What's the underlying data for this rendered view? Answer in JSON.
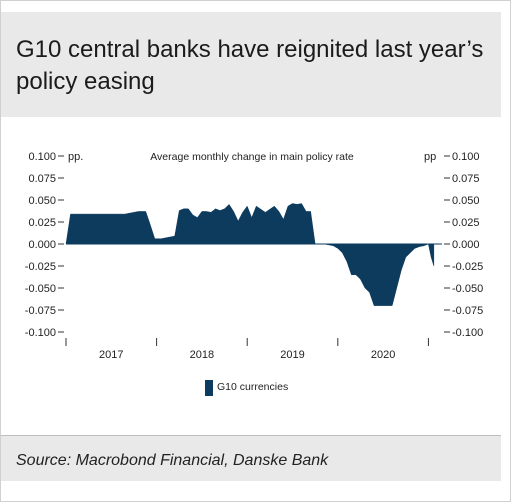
{
  "title": "G10 central banks have reignited last year’s policy easing",
  "source": "Source: Macrobond Financial, Danske Bank",
  "chart_data": {
    "type": "area",
    "title": "Average monthly change in main policy rate",
    "left_unit": "pp.",
    "right_unit": "pp",
    "ylim": [
      -0.1,
      0.1
    ],
    "yticks": [
      -0.1,
      -0.075,
      -0.05,
      -0.025,
      0.0,
      0.025,
      0.05,
      0.075,
      0.1
    ],
    "ytick_labels": [
      "-0.100",
      "-0.075",
      "-0.050",
      "-0.025",
      "0.000",
      "0.025",
      "0.050",
      "0.075",
      "0.100"
    ],
    "x_range": [
      2016.0,
      2020.15
    ],
    "x_year_labels": [
      {
        "label": "2017",
        "x": 2016.5
      },
      {
        "label": "2018",
        "x": 2017.5
      },
      {
        "label": "2019",
        "x": 2018.5
      },
      {
        "label": "2020",
        "x": 2019.5
      }
    ],
    "x_year_boundaries": [
      2016.0,
      2017.0,
      2018.0,
      2019.0,
      2020.0
    ],
    "legend": {
      "placement": "bottom-left",
      "entries": [
        "G10 currencies"
      ]
    },
    "series": [
      {
        "name": "G10 currencies",
        "color": "#0d3b5e",
        "x": [
          2016.0,
          2016.05,
          2016.1,
          2016.2,
          2016.3,
          2016.4,
          2016.5,
          2016.6,
          2016.65,
          2016.75,
          2016.8,
          2016.88,
          2016.92,
          2016.98,
          2017.05,
          2017.1,
          2017.15,
          2017.2,
          2017.25,
          2017.3,
          2017.35,
          2017.4,
          2017.45,
          2017.5,
          2017.55,
          2017.6,
          2017.65,
          2017.7,
          2017.75,
          2017.8,
          2017.85,
          2017.9,
          2017.95,
          2018.0,
          2018.05,
          2018.1,
          2018.2,
          2018.3,
          2018.35,
          2018.4,
          2018.45,
          2018.5,
          2018.55,
          2018.6,
          2018.65,
          2018.7,
          2018.75,
          2018.8,
          2018.85,
          2018.9,
          2018.95,
          2019.0,
          2019.05,
          2019.1,
          2019.15,
          2019.2,
          2019.25,
          2019.3,
          2019.35,
          2019.4,
          2019.45,
          2019.5,
          2019.55,
          2019.6,
          2019.65,
          2019.7,
          2019.75,
          2019.8,
          2019.85,
          2019.9,
          2019.95,
          2020.0,
          2020.03,
          2020.06
        ],
        "y": [
          0.0,
          0.034,
          0.034,
          0.034,
          0.034,
          0.034,
          0.034,
          0.034,
          0.034,
          0.036,
          0.037,
          0.037,
          0.025,
          0.006,
          0.006,
          0.007,
          0.008,
          0.009,
          0.038,
          0.04,
          0.04,
          0.033,
          0.03,
          0.037,
          0.037,
          0.036,
          0.04,
          0.038,
          0.04,
          0.045,
          0.037,
          0.026,
          0.036,
          0.043,
          0.03,
          0.043,
          0.036,
          0.043,
          0.037,
          0.028,
          0.043,
          0.046,
          0.045,
          0.046,
          0.037,
          0.037,
          0.0,
          0.0,
          0.0,
          -0.001,
          -0.002,
          -0.005,
          -0.01,
          -0.02,
          -0.035,
          -0.035,
          -0.04,
          -0.05,
          -0.055,
          -0.07,
          -0.07,
          -0.07,
          -0.07,
          -0.07,
          -0.05,
          -0.03,
          -0.015,
          -0.01,
          -0.005,
          -0.003,
          -0.002,
          0.0,
          -0.015,
          -0.025
        ]
      }
    ]
  }
}
